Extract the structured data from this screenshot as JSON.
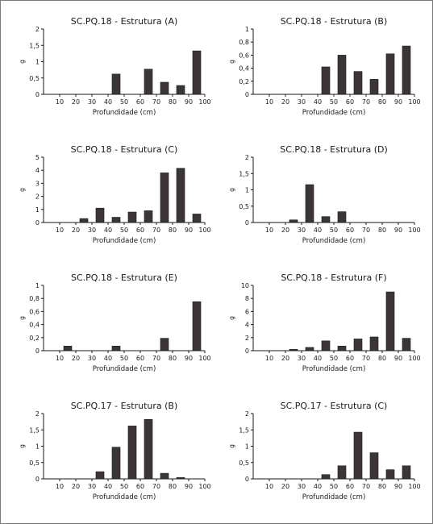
{
  "chart_data": [
    {
      "type": "bar",
      "title": "SC.PQ.18 - Estrutura (A)",
      "xlabel": "Profundidade (cm)",
      "ylabel": "g",
      "ylim": [
        0,
        2
      ],
      "yticks": [
        "0",
        "0,5",
        "1",
        "1,5",
        "2"
      ],
      "xticks": [
        "10",
        "20",
        "30",
        "40",
        "50",
        "60",
        "70",
        "80",
        "90",
        "100"
      ],
      "categories": [
        "0-10",
        "10-20",
        "20-30",
        "30-40",
        "40-50",
        "50-60",
        "60-70",
        "70-80",
        "80-90",
        "90-100"
      ],
      "values": [
        0,
        0,
        0,
        0,
        0.62,
        0,
        0.77,
        0.37,
        0.27,
        1.33
      ]
    },
    {
      "type": "bar",
      "title": "SC.PQ.18 - Estrutura (B)",
      "xlabel": "Profundidade (cm)",
      "ylabel": "g",
      "ylim": [
        0,
        1
      ],
      "yticks": [
        "0",
        "0,2",
        "0,4",
        "0,6",
        "0,8",
        "1"
      ],
      "xticks": [
        "10",
        "20",
        "30",
        "40",
        "50",
        "60",
        "70",
        "80",
        "90",
        "100"
      ],
      "categories": [
        "0-10",
        "10-20",
        "20-30",
        "30-40",
        "40-50",
        "50-60",
        "60-70",
        "70-80",
        "80-90",
        "90-100"
      ],
      "values": [
        0,
        0,
        0,
        0,
        0.42,
        0.6,
        0.35,
        0.23,
        0.62,
        0.74
      ]
    },
    {
      "type": "bar",
      "title": "SC.PQ.18 - Estrutura (C)",
      "xlabel": "Profundidade (cm)",
      "ylabel": "g",
      "ylim": [
        0,
        5
      ],
      "yticks": [
        "0",
        "1",
        "2",
        "3",
        "4",
        "5"
      ],
      "xticks": [
        "10",
        "20",
        "30",
        "40",
        "50",
        "60",
        "70",
        "80",
        "90",
        "100"
      ],
      "categories": [
        "0-10",
        "10-20",
        "20-30",
        "30-40",
        "40-50",
        "50-60",
        "60-70",
        "70-80",
        "80-90",
        "90-100"
      ],
      "values": [
        0,
        0,
        0.3,
        1.1,
        0.4,
        0.8,
        0.9,
        3.8,
        4.15,
        0.65
      ]
    },
    {
      "type": "bar",
      "title": "SC.PQ.18 - Estrutura (D)",
      "xlabel": "Profundidade (cm)",
      "ylabel": "g",
      "ylim": [
        0,
        2
      ],
      "yticks": [
        "0",
        "0,5",
        "1",
        "1,5",
        "2"
      ],
      "xticks": [
        "10",
        "20",
        "30",
        "40",
        "50",
        "60",
        "70",
        "80",
        "90",
        "100"
      ],
      "categories": [
        "0-10",
        "10-20",
        "20-30",
        "30-40",
        "40-50",
        "50-60",
        "60-70",
        "70-80",
        "80-90",
        "90-100"
      ],
      "values": [
        0,
        0,
        0.08,
        1.16,
        0.18,
        0.33,
        0,
        0,
        0,
        0
      ]
    },
    {
      "type": "bar",
      "title": "SC.PQ.18 - Estrutura (E)",
      "xlabel": "Profundidade (cm)",
      "ylabel": "g",
      "ylim": [
        0,
        1
      ],
      "yticks": [
        "0",
        "0,2",
        "0,4",
        "0,6",
        "0,8",
        "1"
      ],
      "xticks": [
        "10",
        "20",
        "30",
        "40",
        "50",
        "60",
        "70",
        "80",
        "90",
        "100"
      ],
      "categories": [
        "0-10",
        "10-20",
        "20-30",
        "30-40",
        "40-50",
        "50-60",
        "60-70",
        "70-80",
        "80-90",
        "90-100"
      ],
      "values": [
        0,
        0.07,
        0,
        0,
        0.07,
        0,
        0,
        0.19,
        0,
        0.75
      ]
    },
    {
      "type": "bar",
      "title": "SC.PQ.18 - Estrutura (F)",
      "xlabel": "Profundidade (cm)",
      "ylabel": "g",
      "ylim": [
        0,
        10
      ],
      "yticks": [
        "0",
        "2",
        "4",
        "6",
        "8",
        "10"
      ],
      "xticks": [
        "10",
        "20",
        "30",
        "40",
        "50",
        "60",
        "70",
        "80",
        "90",
        "100"
      ],
      "categories": [
        "0-10",
        "10-20",
        "20-30",
        "30-40",
        "40-50",
        "50-60",
        "60-70",
        "70-80",
        "80-90",
        "90-100"
      ],
      "values": [
        0,
        0,
        0.2,
        0.5,
        1.5,
        0.7,
        1.8,
        2.1,
        9,
        1.9
      ]
    },
    {
      "type": "bar",
      "title": "SC.PQ.17 - Estrutura (B)",
      "xlabel": "Profundidade (cm)",
      "ylabel": "g",
      "ylim": [
        0,
        2
      ],
      "yticks": [
        "0",
        "0,5",
        "1",
        "1,5",
        "2"
      ],
      "xticks": [
        "10",
        "20",
        "30",
        "40",
        "50",
        "60",
        "70",
        "80",
        "90",
        "100"
      ],
      "categories": [
        "0-10",
        "10-20",
        "20-30",
        "30-40",
        "40-50",
        "50-60",
        "60-70",
        "70-80",
        "80-90",
        "90-100"
      ],
      "values": [
        0,
        0,
        0,
        0.22,
        0.97,
        1.62,
        1.82,
        0.17,
        0.04,
        0
      ]
    },
    {
      "type": "bar",
      "title": "SC.PQ.17 - Estrutura (C)",
      "xlabel": "Profundidade (cm)",
      "ylabel": "g",
      "ylim": [
        0,
        2
      ],
      "yticks": [
        "0",
        "0,5",
        "1",
        "1,5",
        "2"
      ],
      "xticks": [
        "10",
        "20",
        "30",
        "40",
        "50",
        "60",
        "70",
        "80",
        "90",
        "100"
      ],
      "categories": [
        "0-10",
        "10-20",
        "20-30",
        "30-40",
        "40-50",
        "50-60",
        "60-70",
        "70-80",
        "80-90",
        "90-100"
      ],
      "values": [
        0,
        0,
        0,
        0,
        0.13,
        0.4,
        1.43,
        0.8,
        0.28,
        0.4
      ]
    }
  ]
}
